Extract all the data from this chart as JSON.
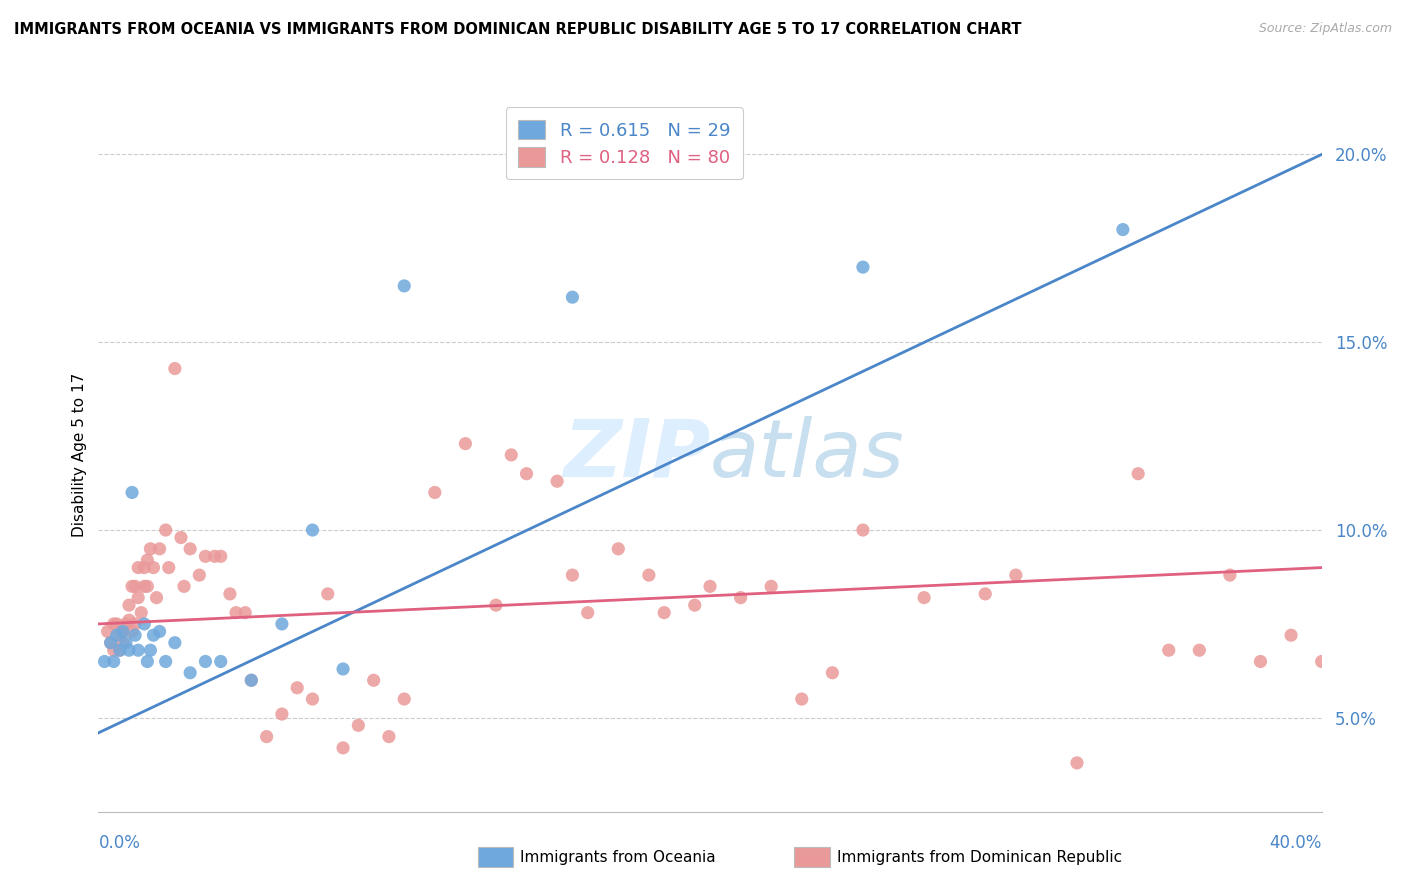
{
  "title": "IMMIGRANTS FROM OCEANIA VS IMMIGRANTS FROM DOMINICAN REPUBLIC DISABILITY AGE 5 TO 17 CORRELATION CHART",
  "source": "Source: ZipAtlas.com",
  "ylabel": "Disability Age 5 to 17",
  "y_tick_values": [
    0.05,
    0.1,
    0.15,
    0.2
  ],
  "xmin": 0.0,
  "xmax": 0.4,
  "ymin": 0.025,
  "ymax": 0.215,
  "r_oceania": 0.615,
  "n_oceania": 29,
  "r_dominican": 0.128,
  "n_dominican": 80,
  "color_oceania": "#6fa8dc",
  "color_dominican": "#ea9999",
  "line_color_oceania": "#4a86c8",
  "line_color_dominican": "#e06080",
  "watermark_color": "#ddeeff",
  "oceania_line_x0": 0.0,
  "oceania_line_y0": 0.046,
  "oceania_line_x1": 0.4,
  "oceania_line_y1": 0.2,
  "dominican_line_x0": 0.0,
  "dominican_line_y0": 0.075,
  "dominican_line_x1": 0.4,
  "dominican_line_y1": 0.09,
  "scatter_oceania_x": [
    0.002,
    0.004,
    0.005,
    0.006,
    0.007,
    0.008,
    0.009,
    0.01,
    0.011,
    0.012,
    0.013,
    0.015,
    0.016,
    0.017,
    0.018,
    0.02,
    0.022,
    0.025,
    0.03,
    0.035,
    0.04,
    0.05,
    0.06,
    0.07,
    0.08,
    0.1,
    0.155,
    0.25,
    0.335
  ],
  "scatter_oceania_y": [
    0.065,
    0.07,
    0.065,
    0.072,
    0.068,
    0.073,
    0.07,
    0.068,
    0.11,
    0.072,
    0.068,
    0.075,
    0.065,
    0.068,
    0.072,
    0.073,
    0.065,
    0.07,
    0.062,
    0.065,
    0.065,
    0.06,
    0.075,
    0.1,
    0.063,
    0.165,
    0.162,
    0.17,
    0.18
  ],
  "scatter_dominican_x": [
    0.003,
    0.004,
    0.005,
    0.005,
    0.006,
    0.007,
    0.007,
    0.008,
    0.008,
    0.009,
    0.01,
    0.01,
    0.011,
    0.011,
    0.012,
    0.012,
    0.013,
    0.013,
    0.014,
    0.015,
    0.015,
    0.016,
    0.016,
    0.017,
    0.018,
    0.019,
    0.02,
    0.022,
    0.023,
    0.025,
    0.027,
    0.028,
    0.03,
    0.033,
    0.035,
    0.038,
    0.04,
    0.043,
    0.045,
    0.048,
    0.05,
    0.055,
    0.06,
    0.065,
    0.07,
    0.075,
    0.08,
    0.085,
    0.09,
    0.095,
    0.1,
    0.11,
    0.12,
    0.13,
    0.14,
    0.15,
    0.16,
    0.18,
    0.2,
    0.21,
    0.22,
    0.23,
    0.24,
    0.25,
    0.27,
    0.29,
    0.3,
    0.32,
    0.34,
    0.35,
    0.36,
    0.37,
    0.38,
    0.39,
    0.4,
    0.135,
    0.155,
    0.17,
    0.185,
    0.195
  ],
  "scatter_dominican_y": [
    0.073,
    0.07,
    0.068,
    0.075,
    0.075,
    0.072,
    0.068,
    0.07,
    0.073,
    0.075,
    0.076,
    0.08,
    0.073,
    0.085,
    0.075,
    0.085,
    0.09,
    0.082,
    0.078,
    0.085,
    0.09,
    0.085,
    0.092,
    0.095,
    0.09,
    0.082,
    0.095,
    0.1,
    0.09,
    0.143,
    0.098,
    0.085,
    0.095,
    0.088,
    0.093,
    0.093,
    0.093,
    0.083,
    0.078,
    0.078,
    0.06,
    0.045,
    0.051,
    0.058,
    0.055,
    0.083,
    0.042,
    0.048,
    0.06,
    0.045,
    0.055,
    0.11,
    0.123,
    0.08,
    0.115,
    0.113,
    0.078,
    0.088,
    0.085,
    0.082,
    0.085,
    0.055,
    0.062,
    0.1,
    0.082,
    0.083,
    0.088,
    0.038,
    0.115,
    0.068,
    0.068,
    0.088,
    0.065,
    0.072,
    0.065,
    0.12,
    0.088,
    0.095,
    0.078,
    0.08
  ]
}
